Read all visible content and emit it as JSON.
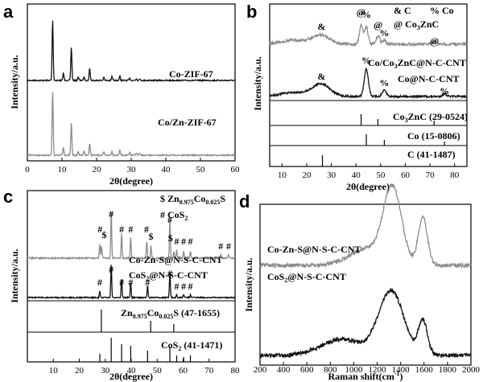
{
  "colors": {
    "black": "#111111",
    "gray": "#8c8c8c"
  },
  "panel_labels": {
    "a": "a",
    "b": "b",
    "c": "c",
    "d": "d"
  },
  "chart_data": [
    {
      "panel": "a",
      "type": "line",
      "xlabel": "2θ(degree)",
      "ylabel": "Intensity/a.u.",
      "xlim": [
        0,
        60
      ],
      "xticks": [
        0,
        10,
        20,
        30,
        40,
        50,
        60
      ],
      "series": [
        {
          "name": "Co-ZIF-67",
          "color": "#111111",
          "peaks": [
            [
              7.3,
              1.0
            ],
            [
              10.4,
              0.12
            ],
            [
              12.7,
              0.55
            ],
            [
              14.7,
              0.06
            ],
            [
              16.4,
              0.06
            ],
            [
              18.0,
              0.2
            ],
            [
              22.1,
              0.05
            ],
            [
              24.4,
              0.06
            ],
            [
              26.7,
              0.07
            ],
            [
              29.6,
              0.04
            ],
            [
              31.5,
              0.03
            ],
            [
              32.4,
              0.03
            ]
          ]
        },
        {
          "name": "Co/Zn-ZIF-67",
          "color": "#8c8c8c",
          "peaks": [
            [
              7.3,
              1.0
            ],
            [
              10.4,
              0.12
            ],
            [
              12.7,
              0.5
            ],
            [
              14.7,
              0.06
            ],
            [
              16.4,
              0.07
            ],
            [
              18.0,
              0.18
            ],
            [
              22.1,
              0.05
            ],
            [
              24.4,
              0.06
            ],
            [
              26.7,
              0.08
            ],
            [
              29.6,
              0.04
            ],
            [
              31.5,
              0.04
            ],
            [
              32.4,
              0.03
            ]
          ]
        }
      ]
    },
    {
      "panel": "b",
      "type": "line",
      "xlabel": "2θ(degree)",
      "ylabel": "Intensity/a.u.",
      "xlim": [
        5,
        85
      ],
      "xticks": [
        10,
        20,
        30,
        40,
        50,
        60,
        70,
        80
      ],
      "legend_symbols": [
        "& C",
        "% Co",
        "@ Co3ZnC"
      ],
      "series": [
        {
          "name": "Co/Co3ZnC@N-C-CNT",
          "color": "#8c8c8c"
        },
        {
          "name": "Co@N-C-CNT",
          "color": "#111111"
        }
      ],
      "references": [
        {
          "label": "Co3ZnC (29-0524)",
          "peaks": [
            42.1,
            48.9,
            71.7
          ]
        },
        {
          "label": "Co (15-0806)",
          "peaks": [
            44.2,
            51.5,
            75.9
          ]
        },
        {
          "label": "C (41-1487)",
          "peaks": [
            26.4
          ]
        }
      ],
      "markers": [
        {
          "sym": "&",
          "x": 26,
          "series": 0
        },
        {
          "sym": "@",
          "x": 42,
          "series": 0
        },
        {
          "sym": "%",
          "x": 44.2,
          "series": 0
        },
        {
          "sym": "@",
          "x": 49,
          "series": 0
        },
        {
          "sym": "%",
          "x": 51.5,
          "series": 0
        },
        {
          "sym": "@",
          "x": 71.8,
          "series": 0
        },
        {
          "sym": "&",
          "x": 26,
          "series": 1
        },
        {
          "sym": "%",
          "x": 44.2,
          "series": 1
        },
        {
          "sym": "%",
          "x": 51.5,
          "series": 1
        },
        {
          "sym": "%",
          "x": 75.9,
          "series": 1
        }
      ]
    },
    {
      "panel": "c",
      "type": "line",
      "xlabel": "2θ(degree)",
      "ylabel": "Intensity/a.u.",
      "xlim": [
        0,
        80
      ],
      "xticks": [
        10,
        20,
        30,
        40,
        50,
        60,
        70,
        80
      ],
      "legend_symbols": [
        "$ Zn0.975Co0.025S",
        "# CoS2"
      ],
      "series": [
        {
          "name": "Co-Zn-S@N-S-C-CNT",
          "color": "#8c8c8c"
        },
        {
          "name": "CoS2@N-S-C-CNT",
          "color": "#111111"
        }
      ],
      "references": [
        {
          "label": "Zn0.975Co0.025S (47-1655)",
          "peaks": [
            28.5,
            47.5,
            56.4
          ]
        },
        {
          "label": "CoS2 (41-1471)",
          "peaks": [
            27.9,
            32.3,
            36.3,
            39.8,
            46.3,
            54.9,
            57.5,
            60.2,
            62.8
          ]
        }
      ],
      "markers": [
        {
          "sym": "#",
          "x": 28,
          "series": 0
        },
        {
          "sym": "$",
          "x": 29.6,
          "series": 0
        },
        {
          "sym": "#",
          "x": 32.3,
          "series": 0
        },
        {
          "sym": "#",
          "x": 36.3,
          "series": 0
        },
        {
          "sym": "#",
          "x": 39.8,
          "series": 0
        },
        {
          "sym": "#",
          "x": 45.9,
          "series": 0
        },
        {
          "sym": "$",
          "x": 47.6,
          "series": 0
        },
        {
          "sym": "#",
          "x": 54.9,
          "series": 0
        },
        {
          "sym": "$",
          "x": 55.1,
          "series": 0
        },
        {
          "sym": "#",
          "x": 57.5,
          "series": 0
        },
        {
          "sym": "#",
          "x": 60.2,
          "series": 0
        },
        {
          "sym": "#",
          "x": 62.8,
          "series": 0
        },
        {
          "sym": "#",
          "x": 74.5,
          "series": 0
        },
        {
          "sym": "#",
          "x": 77.5,
          "series": 0
        },
        {
          "sym": "#",
          "x": 27.9,
          "series": 1
        },
        {
          "sym": "#",
          "x": 32.3,
          "series": 1
        },
        {
          "sym": "#",
          "x": 36.3,
          "series": 1
        },
        {
          "sym": "#",
          "x": 39.8,
          "series": 1
        },
        {
          "sym": "#",
          "x": 46.3,
          "series": 1
        },
        {
          "sym": "#",
          "x": 54.9,
          "series": 1
        },
        {
          "sym": "#",
          "x": 57.5,
          "series": 1
        },
        {
          "sym": "#",
          "x": 60.2,
          "series": 1
        },
        {
          "sym": "#",
          "x": 62.8,
          "series": 1
        }
      ]
    },
    {
      "panel": "d",
      "type": "line",
      "xlabel": "Raman shift(cm",
      "xlabel_sup": "-1",
      "xlabel_end": ")",
      "ylabel": "Intensity/a.u.",
      "xlim": [
        200,
        2000
      ],
      "xticks": [
        200,
        400,
        600,
        800,
        1000,
        1200,
        1400,
        1600,
        1800,
        2000
      ],
      "series": [
        {
          "name": "Co-Zn-S@N-S-C-CNT",
          "color": "#8c8c8c",
          "D_band": 1340,
          "G_band": 1590
        },
        {
          "name": "CoS2@N-S-C-CNT",
          "color": "#111111",
          "D_band": 1340,
          "G_band": 1590
        }
      ]
    }
  ],
  "labels": {
    "a_ticks": [
      "0",
      "10",
      "20",
      "30",
      "40",
      "50",
      "60"
    ],
    "b_ticks": [
      "10",
      "20",
      "30",
      "40",
      "50",
      "60",
      "70",
      "80"
    ],
    "c_ticks": [
      "10",
      "20",
      "30",
      "40",
      "50",
      "60",
      "70",
      "80"
    ],
    "d_ticks": [
      "200",
      "400",
      "600",
      "800",
      "1000",
      "1200",
      "1400",
      "1600",
      "1800",
      "2000"
    ],
    "b_legend_C": "& C",
    "b_legend_Co": "% Co",
    "b_legend_Co3ZnC_pre": "@ Co",
    "b_legend_Co3ZnC_sub": "3",
    "b_legend_Co3ZnC_post": "ZnC",
    "b_series1_pre": "Co/Co",
    "b_series1_sub": "3",
    "b_series1_post": "ZnC@N-C-CNT",
    "b_ref1_pre": "Co",
    "b_ref1_sub": "3",
    "b_ref1_post": "ZnC (29-0524)",
    "c_legend_ZnCoS_pre": "$ Zn",
    "c_legend_ZnCoS_sub1": "0.975",
    "c_legend_ZnCoS_mid": "Co",
    "c_legend_ZnCoS_sub2": "0.025",
    "c_legend_ZnCoS_post": "S",
    "c_legend_CoS2_pre": "# CoS",
    "c_legend_CoS2_sub": "2",
    "c_series2_pre": "CoS",
    "c_series2_sub": "2",
    "c_series2_post": "@N-S-C-CNT",
    "c_ref1_pre": "Zn",
    "c_ref1_sub1": "0.975",
    "c_ref1_mid": "Co",
    "c_ref1_sub2": "0.025",
    "c_ref1_post": "S (47-1655)",
    "c_ref2_pre": "CoS",
    "c_ref2_sub": "2",
    "c_ref2_post": " (41-1471)",
    "d_series2_pre": "CoS",
    "d_series2_sub": "2",
    "d_series2_post": "@N-S-C-CNT"
  }
}
